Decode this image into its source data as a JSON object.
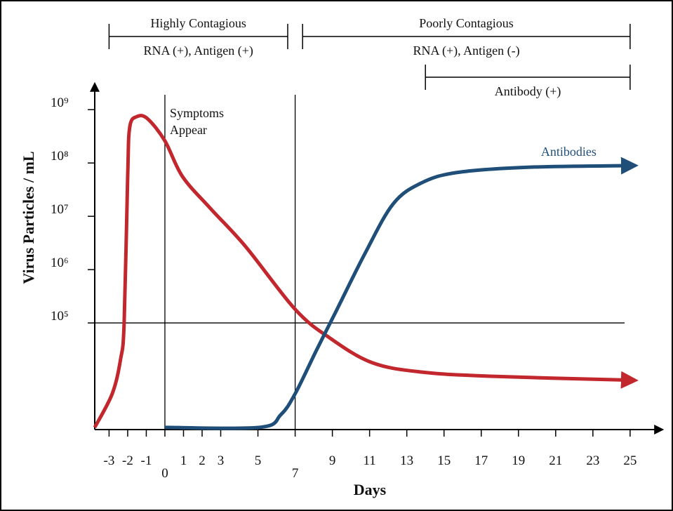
{
  "chart_data": {
    "type": "line",
    "x_label": "Days",
    "y_label": "Virus Particles / mL",
    "log_y": true,
    "xlim": [
      -3.77,
      26.4
    ],
    "ylim": [
      1000,
      3000000000
    ],
    "xticks": [
      -3,
      -2,
      -1,
      0,
      1,
      2,
      3,
      5,
      7,
      9,
      11,
      13,
      15,
      17,
      19,
      21,
      23,
      25
    ],
    "yticks": [
      {
        "value": 100000,
        "label": "10⁵"
      },
      {
        "value": 1000000,
        "label": "10⁶"
      },
      {
        "value": 10000000,
        "label": "10⁷"
      },
      {
        "value": 100000000,
        "label": "10⁸"
      },
      {
        "value": 1000000000,
        "label": "10⁹"
      }
    ],
    "reference_x": [
      0,
      7
    ],
    "reference_y": [
      100000
    ],
    "series": [
      {
        "name": "Virus",
        "color": "#c1272d",
        "x": [
          -3.77,
          -2.83,
          -2.38,
          -2.19,
          -2.0,
          -1.89,
          -1.51,
          -0.94,
          0,
          0.94,
          2.45,
          4.34,
          7,
          8.87,
          11.13,
          13.77,
          17.5,
          24.7
        ],
        "values": [
          1100,
          4700,
          21000,
          100000,
          56000000,
          470000000,
          740000000,
          680000000,
          260000000,
          56000000,
          14000000,
          2700000,
          180000,
          52000,
          18000,
          12000,
          10000,
          8500
        ]
      },
      {
        "name": "Antibodies",
        "color": "#1f4e79",
        "x": [
          0,
          5.1,
          6.23,
          7,
          8.11,
          9.25,
          10.75,
          12.26,
          13.77,
          15.66,
          19.4,
          24.7
        ],
        "values": [
          1100,
          1100,
          1900,
          4700,
          29000,
          180000,
          2000000,
          17000000,
          42000000,
          66000000,
          83000000,
          89000000
        ]
      }
    ],
    "annotations": {
      "symptoms": [
        "Symptoms",
        "Appear"
      ],
      "periods": [
        {
          "label": "Highly Contagious",
          "sublabel": "RNA (+), Antigen (+)",
          "span": [
            -3,
            6.6
          ]
        },
        {
          "label": "Poorly Contagious",
          "sublabel": "RNA (+), Antigen (-)",
          "span": [
            7.4,
            25
          ]
        },
        {
          "label": "Antibody (+)",
          "span": [
            14,
            25
          ]
        }
      ]
    }
  }
}
